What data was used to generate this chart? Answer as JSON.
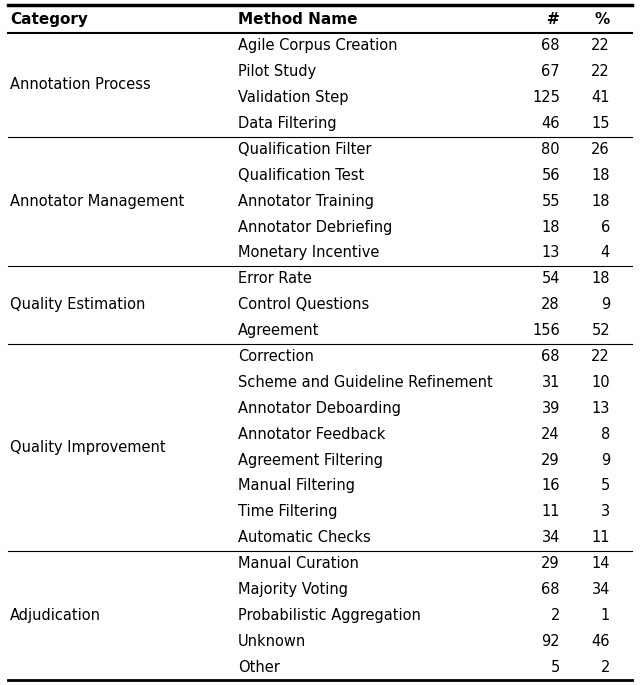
{
  "headers": [
    "Category",
    "Method Name",
    "#",
    "%"
  ],
  "rows": [
    {
      "category": "Annotation Process",
      "method": "Agile Corpus Creation",
      "count": "68",
      "pct": "22"
    },
    {
      "category": "",
      "method": "Pilot Study",
      "count": "67",
      "pct": "22"
    },
    {
      "category": "",
      "method": "Validation Step",
      "count": "125",
      "pct": "41"
    },
    {
      "category": "",
      "method": "Data Filtering",
      "count": "46",
      "pct": "15"
    },
    {
      "category": "Annotator Management",
      "method": "Qualification Filter",
      "count": "80",
      "pct": "26"
    },
    {
      "category": "",
      "method": "Qualification Test",
      "count": "56",
      "pct": "18"
    },
    {
      "category": "",
      "method": "Annotator Training",
      "count": "55",
      "pct": "18"
    },
    {
      "category": "",
      "method": "Annotator Debriefing",
      "count": "18",
      "pct": "6"
    },
    {
      "category": "",
      "method": "Monetary Incentive",
      "count": "13",
      "pct": "4"
    },
    {
      "category": "Quality Estimation",
      "method": "Error Rate",
      "count": "54",
      "pct": "18"
    },
    {
      "category": "",
      "method": "Control Questions",
      "count": "28",
      "pct": "9"
    },
    {
      "category": "",
      "method": "Agreement",
      "count": "156",
      "pct": "52"
    },
    {
      "category": "Quality Improvement",
      "method": "Correction",
      "count": "68",
      "pct": "22"
    },
    {
      "category": "",
      "method": "Scheme and Guideline Refinement",
      "count": "31",
      "pct": "10"
    },
    {
      "category": "",
      "method": "Annotator Deboarding",
      "count": "39",
      "pct": "13"
    },
    {
      "category": "",
      "method": "Annotator Feedback",
      "count": "24",
      "pct": "8"
    },
    {
      "category": "",
      "method": "Agreement Filtering",
      "count": "29",
      "pct": "9"
    },
    {
      "category": "",
      "method": "Manual Filtering",
      "count": "16",
      "pct": "5"
    },
    {
      "category": "",
      "method": "Time Filtering",
      "count": "11",
      "pct": "3"
    },
    {
      "category": "",
      "method": "Automatic Checks",
      "count": "34",
      "pct": "11"
    },
    {
      "category": "Adjudication",
      "method": "Manual Curation",
      "count": "29",
      "pct": "14"
    },
    {
      "category": "",
      "method": "Majority Voting",
      "count": "68",
      "pct": "34"
    },
    {
      "category": "",
      "method": "Probabilistic Aggregation",
      "count": "2",
      "pct": "1"
    },
    {
      "category": "",
      "method": "Unknown",
      "count": "92",
      "pct": "46"
    },
    {
      "category": "",
      "method": "Other",
      "count": "5",
      "pct": "2"
    }
  ],
  "category_spans": [
    {
      "name": "Annotation Process",
      "start": 0,
      "end": 3
    },
    {
      "name": "Annotator Management",
      "start": 4,
      "end": 8
    },
    {
      "name": "Quality Estimation",
      "start": 9,
      "end": 11
    },
    {
      "name": "Quality Improvement",
      "start": 12,
      "end": 19
    },
    {
      "name": "Adjudication",
      "start": 20,
      "end": 24
    }
  ],
  "separator_before": [
    4,
    9,
    12,
    20
  ],
  "bg_color": "#ffffff",
  "text_color": "#000000",
  "header_fontsize": 11,
  "body_fontsize": 10.5
}
